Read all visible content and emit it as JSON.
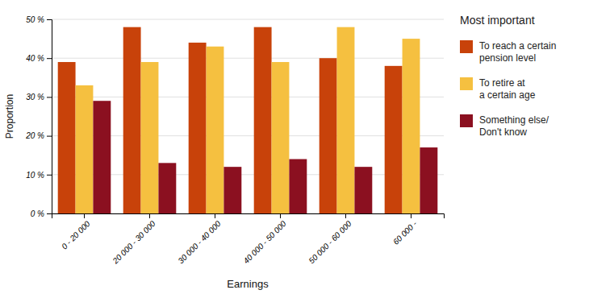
{
  "chart_data": {
    "type": "bar",
    "title": "Most important",
    "xlabel": "Earnings",
    "ylabel": "Proportion",
    "categories": [
      "0 - 20 000",
      "20 000 - 30 000",
      "30 000 - 40 000",
      "40 000 - 50 000",
      "50 000 - 60 000",
      "60 000 -"
    ],
    "series": [
      {
        "name": "To reach a certain\npension level",
        "color": "#C8420A",
        "values": [
          39,
          48,
          44,
          48,
          40,
          38
        ]
      },
      {
        "name": "To retire at\na certain age",
        "color": "#F5C040",
        "values": [
          33,
          39,
          43,
          39,
          48,
          45
        ]
      },
      {
        "name": "Something else/\nDon't know",
        "color": "#8B1020",
        "values": [
          29,
          13,
          12,
          14,
          12,
          17
        ]
      }
    ],
    "ylim": [
      0,
      50
    ],
    "yticks": [
      {
        "value": 0,
        "label": "0 %"
      },
      {
        "value": 10,
        "label": "10 %"
      },
      {
        "value": 20,
        "label": "20 %"
      },
      {
        "value": 30,
        "label": "30 %"
      },
      {
        "value": 40,
        "label": "40 %"
      },
      {
        "value": 50,
        "label": "50 %"
      }
    ],
    "grid": true,
    "legend": "right"
  }
}
